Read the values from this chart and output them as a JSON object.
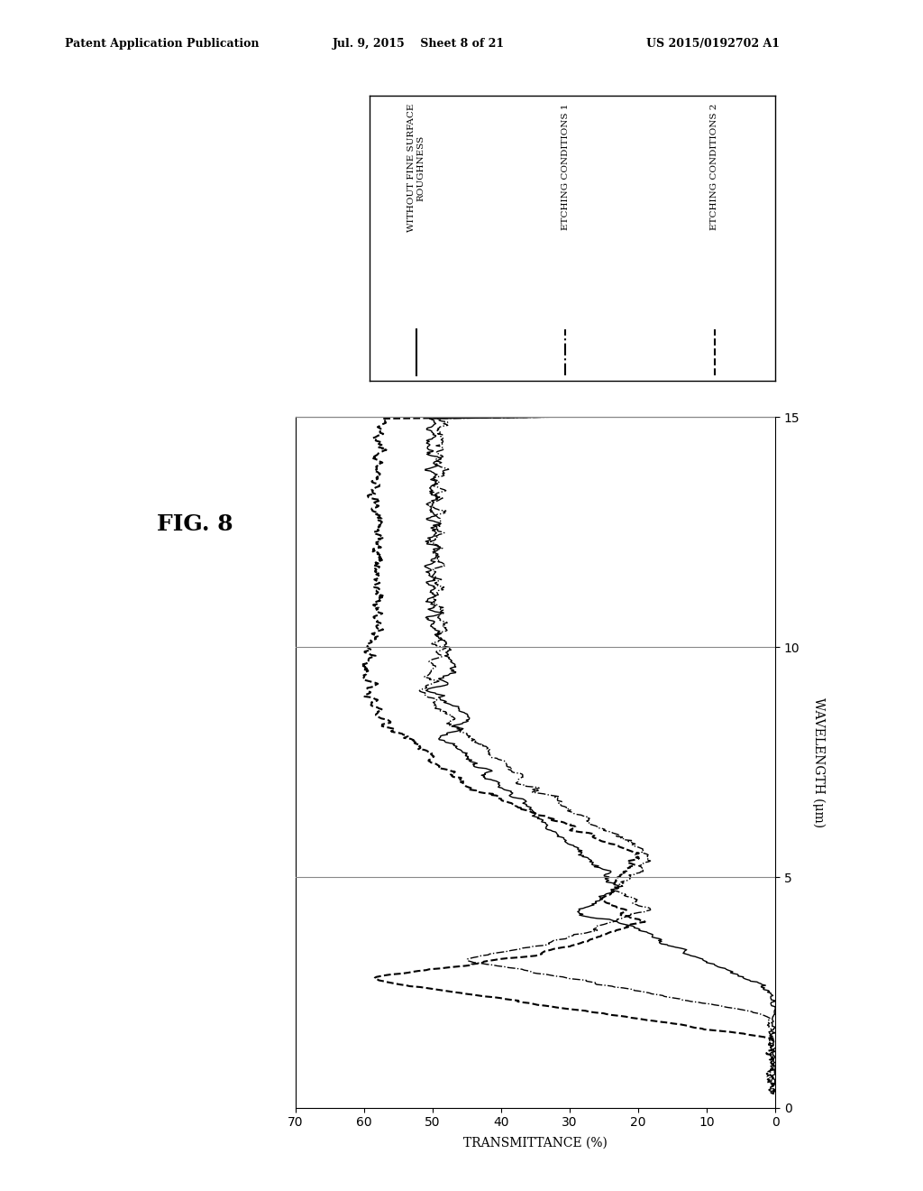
{
  "fig_label": "FIG. 8",
  "header_left": "Patent Application Publication",
  "header_center": "Jul. 9, 2015    Sheet 8 of 21",
  "header_right": "US 2015/0192702 A1",
  "xlabel": "TRANSMITTANCE (%)",
  "ylabel": "WAVELENGTH (μm)",
  "legend_labels": [
    "WITHOUT FINE SURFACE\nROUGHNESS",
    "ETCHING CONDITIONS 1",
    "ETCHING CONDITIONS 2"
  ],
  "legend_linestyles": [
    "solid",
    "dashdot",
    "dashed"
  ],
  "background_color": "#ffffff",
  "line_color": "#000000"
}
